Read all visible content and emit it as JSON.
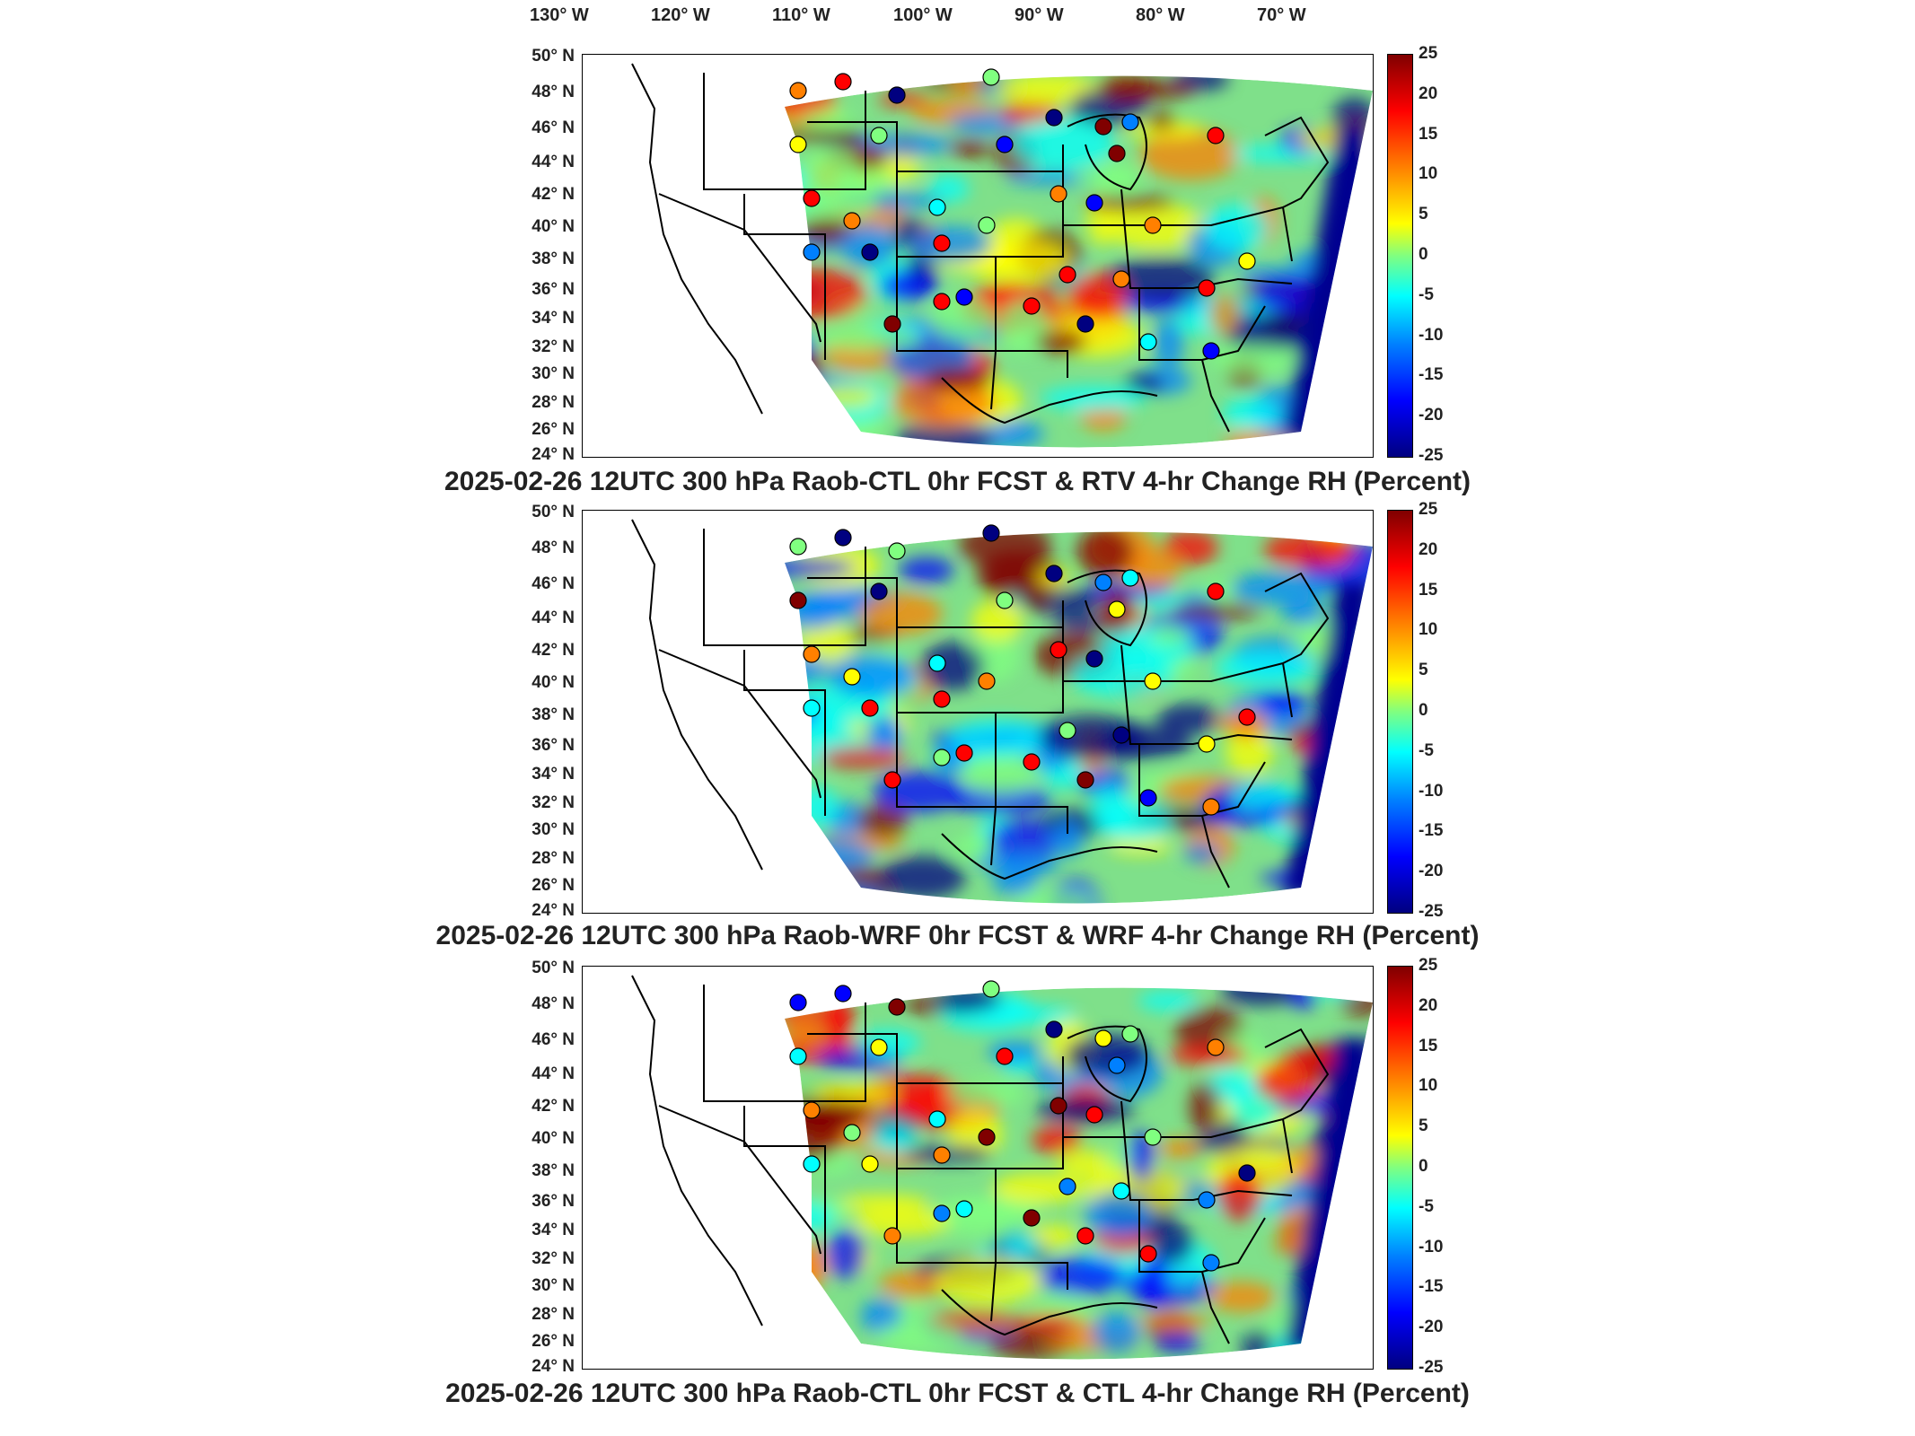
{
  "lon_labels": [
    "130° W",
    "120° W",
    "110° W",
    "100° W",
    "90° W",
    "80° W",
    "70° W"
  ],
  "lat_labels": [
    "50° N",
    "48° N",
    "46° N",
    "44° N",
    "42° N",
    "40° N",
    "38° N",
    "36° N",
    "34° N",
    "32° N",
    "30° N",
    "28° N",
    "26° N",
    "24° N"
  ],
  "colorbar_ticks": [
    "25",
    "20",
    "15",
    "10",
    "5",
    "0",
    "-5",
    "-10",
    "-15",
    "-20",
    "-25"
  ],
  "colorbar_range": [
    -25,
    25
  ],
  "colormap": [
    "#800000",
    "#ff0000",
    "#ff8000",
    "#ffff00",
    "#80ff80",
    "#00ffff",
    "#0080ff",
    "#0000ff",
    "#000080"
  ],
  "panels": [
    {
      "title": "2025-02-26 12UTC 300 hPa Raob-CTL 0hr FCST & RTV 4-hr Change RH (Percent)"
    },
    {
      "title": "2025-02-26 12UTC 300 hPa Raob-WRF 0hr FCST & WRF 4-hr Change RH (Percent)"
    },
    {
      "title": "2025-02-26 12UTC 300 hPa Raob-CTL 0hr FCST & CTL 4-hr Change RH (Percent)"
    }
  ]
}
